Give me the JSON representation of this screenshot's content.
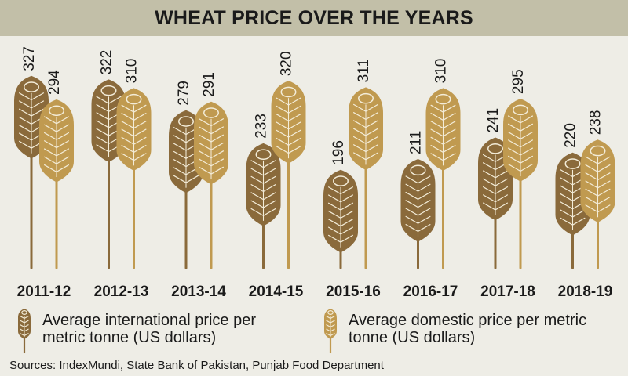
{
  "title": "WHEAT PRICE OVER THE YEARS",
  "legend": {
    "international": "Average international price per metric tonne (US dollars)",
    "domestic": "Average domestic price per metric tonne (US dollars)"
  },
  "sources": "Sources:  IndexMundi, State Bank of Pakistan, Punjab Food Department",
  "colors": {
    "international": "#8a6a3b",
    "domestic": "#c09a50",
    "background": "#eeede6",
    "title_bar": "#c2bfa8"
  },
  "icons": {
    "international": "wheat-stalk-dark-icon",
    "domestic": "wheat-stalk-gold-icon"
  },
  "chart_data": {
    "type": "bar",
    "title": "WHEAT PRICE OVER THE YEARS",
    "categories": [
      "2011-12",
      "2012-13",
      "2013-14",
      "2014-15",
      "2015-16",
      "2016-17",
      "2017-18",
      "2018-19"
    ],
    "series": [
      {
        "name": "Average international price per metric tonne (US dollars)",
        "values": [
          327,
          322,
          279,
          233,
          196,
          211,
          241,
          220
        ]
      },
      {
        "name": "Average domestic price per metric tonne (US dollars)",
        "values": [
          294,
          310,
          291,
          320,
          311,
          310,
          295,
          238
        ]
      }
    ],
    "xlabel": "",
    "ylabel": "",
    "grid": false
  }
}
